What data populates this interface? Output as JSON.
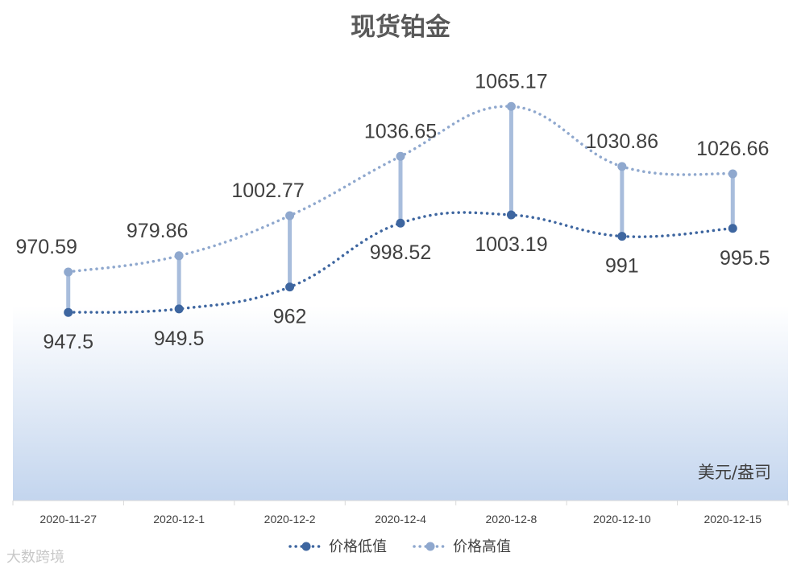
{
  "chart_data": {
    "type": "line",
    "title": "现货铂金",
    "unit_label": "美元/盎司",
    "categories": [
      "2020-11-27",
      "2020-12-1",
      "2020-12-2",
      "2020-12-4",
      "2020-12-8",
      "2020-12-10",
      "2020-12-15"
    ],
    "series": [
      {
        "name": "价格低值",
        "values": [
          947.5,
          949.5,
          962,
          998.52,
          1003.19,
          991,
          995.5
        ],
        "labels": [
          "947.5",
          "949.5",
          "962",
          "998.52",
          "1003.19",
          "991",
          "995.5"
        ],
        "color": "#3E66A0"
      },
      {
        "name": "价格高值",
        "values": [
          970.59,
          979.86,
          1002.77,
          1036.65,
          1065.17,
          1030.86,
          1026.66
        ],
        "labels": [
          "970.59",
          "979.86",
          "1002.77",
          "1036.65",
          "1065.17",
          "1030.86",
          "1026.66"
        ],
        "color": "#8FA8CE"
      }
    ],
    "high_low_lines": true,
    "smooth": true,
    "line_style": "dotted",
    "gridlines": false,
    "legend_position": "bottom",
    "background": "gradient-blue"
  },
  "watermark": "大数跨境"
}
